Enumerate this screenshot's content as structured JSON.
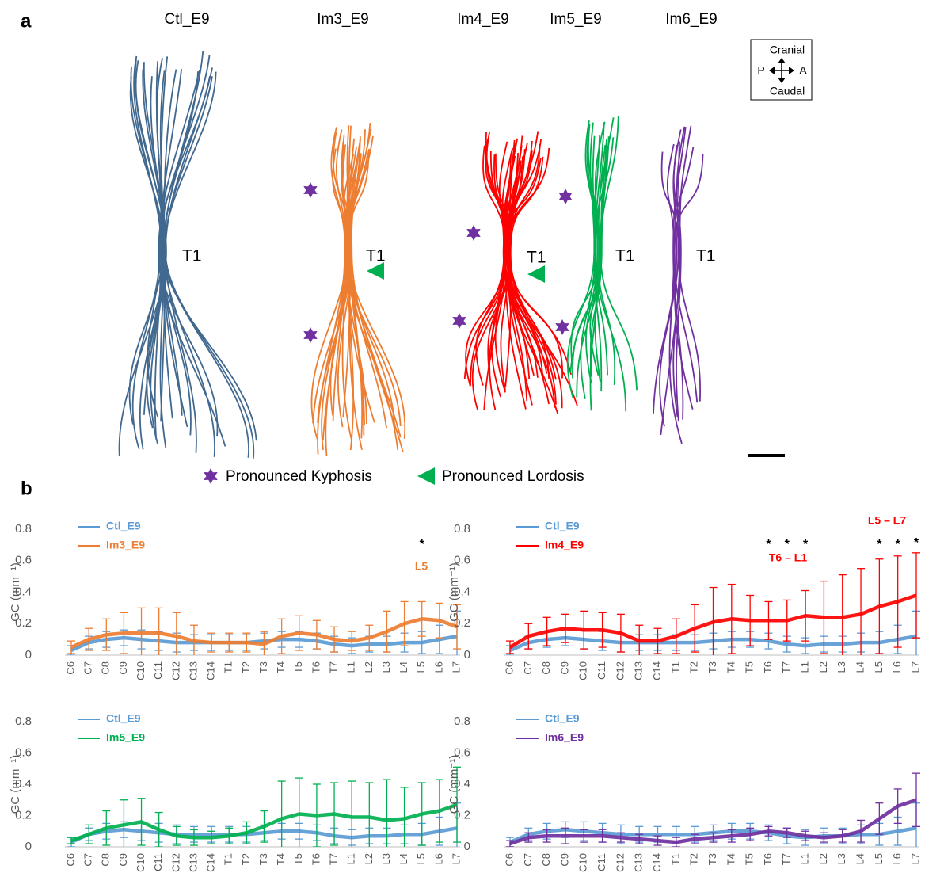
{
  "figure": {
    "panel_a": "a",
    "panel_b": "b",
    "specimens": [
      "Ctl_E9",
      "Im3_E9",
      "Im4_E9",
      "Im5_E9",
      "Im6_E9"
    ],
    "t1_label": "T1",
    "compass": {
      "top": "Cranial",
      "bottom": "Caudal",
      "left": "P",
      "right": "A"
    },
    "legend": [
      "Pronounced Kyphosis",
      "Pronounced Lordosis"
    ]
  },
  "chart_data": [
    {
      "type": "line",
      "y_label": "GC (mm⁻¹)",
      "categories": [
        "C6",
        "C7",
        "C8",
        "C9",
        "C10",
        "C11",
        "C12",
        "C13",
        "C14",
        "T1",
        "T2",
        "T3",
        "T4",
        "T5",
        "T6",
        "T7",
        "L1",
        "L2",
        "L3",
        "L4",
        "L5",
        "L6",
        "L7"
      ],
      "ylim": [
        0,
        0.8
      ],
      "yticks": [
        0,
        0.2,
        0.4,
        0.6,
        0.8
      ],
      "series": [
        {
          "name": "Ctl_E9",
          "color": "#5b9bd5",
          "values": [
            0.03,
            0.08,
            0.1,
            0.11,
            0.1,
            0.09,
            0.08,
            0.08,
            0.08,
            0.08,
            0.08,
            0.09,
            0.1,
            0.1,
            0.09,
            0.07,
            0.06,
            0.07,
            0.07,
            0.08,
            0.08,
            0.1,
            0.12
          ],
          "errors": [
            0.03,
            0.04,
            0.05,
            0.05,
            0.06,
            0.06,
            0.06,
            0.05,
            0.05,
            0.05,
            0.05,
            0.05,
            0.05,
            0.05,
            0.05,
            0.05,
            0.05,
            0.05,
            0.05,
            0.06,
            0.07,
            0.09,
            0.16
          ]
        },
        {
          "name": "Im3_E9",
          "color": "#ed7d31",
          "values": [
            0.05,
            0.1,
            0.13,
            0.14,
            0.14,
            0.14,
            0.12,
            0.09,
            0.08,
            0.08,
            0.08,
            0.07,
            0.12,
            0.14,
            0.13,
            0.1,
            0.09,
            0.11,
            0.15,
            0.2,
            0.23,
            0.22,
            0.18
          ],
          "errors": [
            0.04,
            0.07,
            0.1,
            0.13,
            0.16,
            0.16,
            0.15,
            0.1,
            0.06,
            0.06,
            0.06,
            0.08,
            0.11,
            0.11,
            0.09,
            0.08,
            0.06,
            0.08,
            0.13,
            0.14,
            0.11,
            0.11,
            0.14
          ]
        }
      ],
      "annotations": [
        {
          "text": "L5",
          "color": "#ed7d31"
        }
      ],
      "significance": {
        "label": "*",
        "categories": [
          "L5"
        ]
      }
    },
    {
      "type": "line",
      "y_label": "GC (mm⁻¹)",
      "categories": [
        "C6",
        "C7",
        "C8",
        "C9",
        "C10",
        "C11",
        "C12",
        "C13",
        "C14",
        "T1",
        "T2",
        "T3",
        "T4",
        "T5",
        "T6",
        "T7",
        "L1",
        "L2",
        "L3",
        "L4",
        "L5",
        "L6",
        "L7"
      ],
      "ylim": [
        0,
        0.8
      ],
      "yticks": [
        0,
        0.2,
        0.4,
        0.6,
        0.8
      ],
      "series": [
        {
          "name": "Ctl_E9",
          "color": "#5b9bd5",
          "values": [
            0.03,
            0.08,
            0.1,
            0.11,
            0.1,
            0.09,
            0.08,
            0.08,
            0.08,
            0.08,
            0.08,
            0.09,
            0.1,
            0.1,
            0.09,
            0.07,
            0.06,
            0.07,
            0.07,
            0.08,
            0.08,
            0.1,
            0.12
          ],
          "errors": [
            0.03,
            0.04,
            0.05,
            0.05,
            0.06,
            0.06,
            0.06,
            0.05,
            0.05,
            0.05,
            0.05,
            0.05,
            0.05,
            0.05,
            0.05,
            0.05,
            0.05,
            0.05,
            0.05,
            0.06,
            0.07,
            0.09,
            0.16
          ]
        },
        {
          "name": "Im4_E9",
          "color": "#ff0000",
          "values": [
            0.05,
            0.12,
            0.15,
            0.17,
            0.16,
            0.16,
            0.14,
            0.09,
            0.09,
            0.12,
            0.17,
            0.21,
            0.23,
            0.22,
            0.22,
            0.22,
            0.25,
            0.24,
            0.24,
            0.26,
            0.31,
            0.34,
            0.38
          ],
          "errors": [
            0.04,
            0.08,
            0.09,
            0.09,
            0.12,
            0.11,
            0.12,
            0.1,
            0.08,
            0.11,
            0.15,
            0.22,
            0.22,
            0.16,
            0.12,
            0.13,
            0.16,
            0.23,
            0.27,
            0.29,
            0.3,
            0.29,
            0.27
          ]
        }
      ],
      "annotations": [
        {
          "text": "T6 – L1",
          "color": "#ff0000"
        },
        {
          "text": "L5 – L7",
          "color": "#ff0000"
        }
      ],
      "significance": {
        "label": "*",
        "categories": [
          "T6",
          "T7",
          "L1",
          "L5",
          "L6",
          "L7"
        ]
      }
    },
    {
      "type": "line",
      "y_label": "GC (mm⁻¹)",
      "categories": [
        "C6",
        "C7",
        "C8",
        "C9",
        "C10",
        "C11",
        "C12",
        "C13",
        "C14",
        "T1",
        "T2",
        "T3",
        "T4",
        "T5",
        "T6",
        "T7",
        "L1",
        "L2",
        "L3",
        "L4",
        "L5",
        "L6",
        "L7"
      ],
      "ylim": [
        0,
        0.8
      ],
      "yticks": [
        0,
        0.2,
        0.4,
        0.6,
        0.8
      ],
      "series": [
        {
          "name": "Ctl_E9",
          "color": "#5b9bd5",
          "values": [
            0.03,
            0.08,
            0.1,
            0.11,
            0.1,
            0.09,
            0.08,
            0.08,
            0.08,
            0.08,
            0.08,
            0.09,
            0.1,
            0.1,
            0.09,
            0.07,
            0.06,
            0.07,
            0.07,
            0.08,
            0.08,
            0.1,
            0.12
          ],
          "errors": [
            0.03,
            0.04,
            0.05,
            0.05,
            0.06,
            0.06,
            0.06,
            0.05,
            0.05,
            0.05,
            0.05,
            0.05,
            0.05,
            0.05,
            0.05,
            0.05,
            0.05,
            0.05,
            0.05,
            0.06,
            0.07,
            0.09,
            0.16
          ]
        },
        {
          "name": "Im5_E9",
          "color": "#00b050",
          "values": [
            0.04,
            0.08,
            0.12,
            0.14,
            0.16,
            0.11,
            0.07,
            0.06,
            0.06,
            0.07,
            0.09,
            0.13,
            0.18,
            0.21,
            0.2,
            0.21,
            0.19,
            0.19,
            0.17,
            0.18,
            0.21,
            0.23,
            0.27
          ],
          "errors": [
            0.02,
            0.06,
            0.11,
            0.16,
            0.15,
            0.11,
            0.06,
            0.05,
            0.04,
            0.05,
            0.07,
            0.1,
            0.24,
            0.23,
            0.2,
            0.2,
            0.23,
            0.22,
            0.26,
            0.2,
            0.2,
            0.2,
            0.24
          ]
        }
      ]
    },
    {
      "type": "line",
      "y_label": "GC (mm⁻¹)",
      "categories": [
        "C6",
        "C7",
        "C8",
        "C9",
        "C10",
        "C11",
        "C12",
        "C13",
        "C14",
        "T1",
        "T2",
        "T3",
        "T4",
        "T5",
        "T6",
        "T7",
        "L1",
        "L2",
        "L3",
        "L4",
        "L5",
        "L6",
        "L7"
      ],
      "ylim": [
        0,
        0.8
      ],
      "yticks": [
        0,
        0.2,
        0.4,
        0.6,
        0.8
      ],
      "series": [
        {
          "name": "Ctl_E9",
          "color": "#5b9bd5",
          "values": [
            0.03,
            0.08,
            0.1,
            0.11,
            0.1,
            0.09,
            0.08,
            0.08,
            0.08,
            0.08,
            0.08,
            0.09,
            0.1,
            0.1,
            0.09,
            0.07,
            0.06,
            0.07,
            0.07,
            0.08,
            0.08,
            0.1,
            0.12
          ],
          "errors": [
            0.03,
            0.04,
            0.05,
            0.05,
            0.06,
            0.06,
            0.06,
            0.05,
            0.05,
            0.05,
            0.05,
            0.05,
            0.05,
            0.05,
            0.05,
            0.05,
            0.05,
            0.05,
            0.05,
            0.06,
            0.07,
            0.09,
            0.16
          ]
        },
        {
          "name": "Im6_E9",
          "color": "#7030a0",
          "values": [
            0.02,
            0.06,
            0.07,
            0.07,
            0.07,
            0.07,
            0.06,
            0.05,
            0.04,
            0.03,
            0.05,
            0.06,
            0.07,
            0.08,
            0.1,
            0.09,
            0.07,
            0.06,
            0.07,
            0.1,
            0.18,
            0.26,
            0.3
          ],
          "errors": [
            0.02,
            0.03,
            0.04,
            0.05,
            0.04,
            0.04,
            0.03,
            0.03,
            0.03,
            0.03,
            0.03,
            0.03,
            0.04,
            0.04,
            0.03,
            0.03,
            0.03,
            0.03,
            0.04,
            0.07,
            0.1,
            0.11,
            0.17
          ]
        }
      ]
    }
  ]
}
